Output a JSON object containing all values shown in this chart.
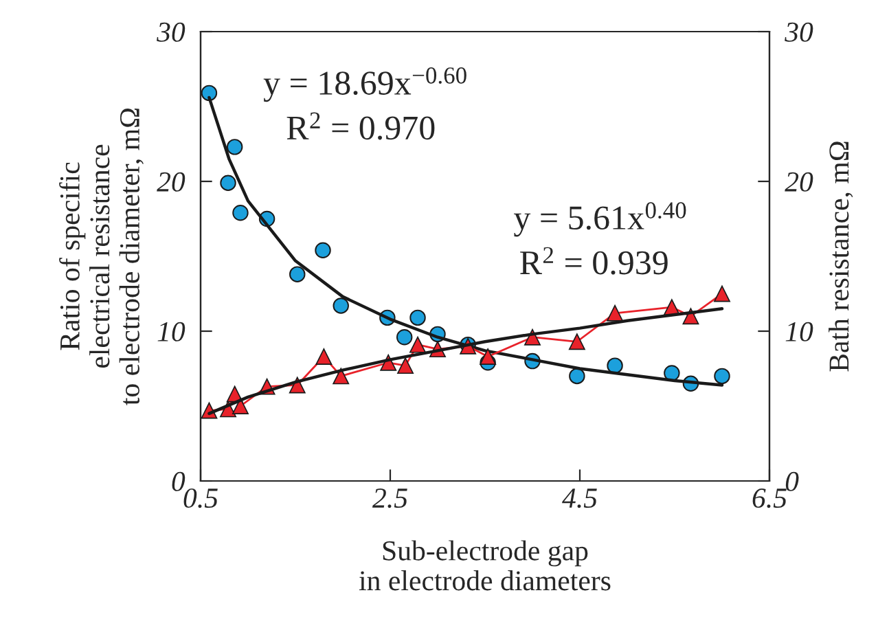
{
  "chart_data": {
    "type": "scatter",
    "xlabel": "Sub-electrode gap\nin electrode diameters",
    "ylabel": "Ratio of specific\nelectrical resistance\nto electrode diameter, mΩ",
    "y2label": "Bath resistance, mΩ",
    "xlim": [
      0.5,
      6.5
    ],
    "xticks": [
      0.5,
      2.5,
      4.5,
      6.5
    ],
    "ylim": [
      0,
      30
    ],
    "yticks": [
      0,
      10,
      20,
      30
    ],
    "y2lim": [
      0,
      30
    ],
    "y2ticks": [
      0,
      10,
      20,
      30
    ],
    "grid": false,
    "legend": false,
    "annotations": [
      "y = 18.69x$^{−0.60}$",
      "R$^{2}$ = 0.970",
      "y = 5.61x$^{0.40}$",
      "R$^{2}$ = 0.939"
    ],
    "series": [
      {
        "marker": "circle",
        "color": "#1ca0dc",
        "x": [
          0.59,
          0.79,
          0.86,
          0.92,
          1.2,
          1.52,
          1.79,
          1.98,
          2.47,
          2.65,
          2.79,
          3.0,
          3.32,
          3.53,
          4.0,
          4.47,
          4.87,
          5.47,
          5.67,
          6.0
        ],
        "values": [
          25.9,
          19.9,
          22.3,
          17.9,
          17.5,
          13.8,
          15.4,
          11.7,
          10.9,
          9.6,
          10.9,
          9.8,
          9.1,
          7.9,
          8.0,
          7.0,
          7.7,
          7.2,
          6.5,
          7.0
        ]
      },
      {
        "type": "line",
        "marker": "none",
        "color": "#1a1a1a",
        "x": [
          0.59,
          0.8,
          1.0,
          1.5,
          2.0,
          2.5,
          3.0,
          3.5,
          4.0,
          4.5,
          5.0,
          5.5,
          6.0
        ],
        "values": [
          25.6,
          21.5,
          18.7,
          14.7,
          12.3,
          10.8,
          9.6,
          8.7,
          8.1,
          7.5,
          7.1,
          6.7,
          6.4
        ]
      },
      {
        "type": "line",
        "marker": "triangle",
        "axis": "y2",
        "color": "#e8222a",
        "x": [
          0.59,
          0.79,
          0.86,
          0.92,
          1.2,
          1.52,
          1.8,
          1.98,
          2.48,
          2.66,
          2.79,
          3.0,
          3.32,
          3.53,
          4.0,
          4.47,
          4.87,
          5.47,
          5.67,
          6.0
        ],
        "values": [
          4.7,
          4.8,
          5.8,
          5.0,
          6.3,
          6.4,
          8.3,
          7.0,
          7.9,
          7.7,
          9.1,
          8.8,
          9.0,
          8.3,
          9.6,
          9.3,
          11.2,
          11.6,
          11.0,
          12.5
        ]
      },
      {
        "type": "line",
        "marker": "none",
        "axis": "y2",
        "color": "#1a1a1a",
        "x": [
          0.59,
          1.0,
          1.5,
          2.0,
          2.5,
          3.0,
          3.5,
          4.0,
          4.5,
          5.0,
          5.5,
          6.0
        ],
        "values": [
          4.5,
          5.6,
          6.6,
          7.4,
          8.1,
          8.7,
          9.3,
          9.8,
          10.2,
          10.7,
          11.1,
          11.5
        ]
      }
    ]
  }
}
